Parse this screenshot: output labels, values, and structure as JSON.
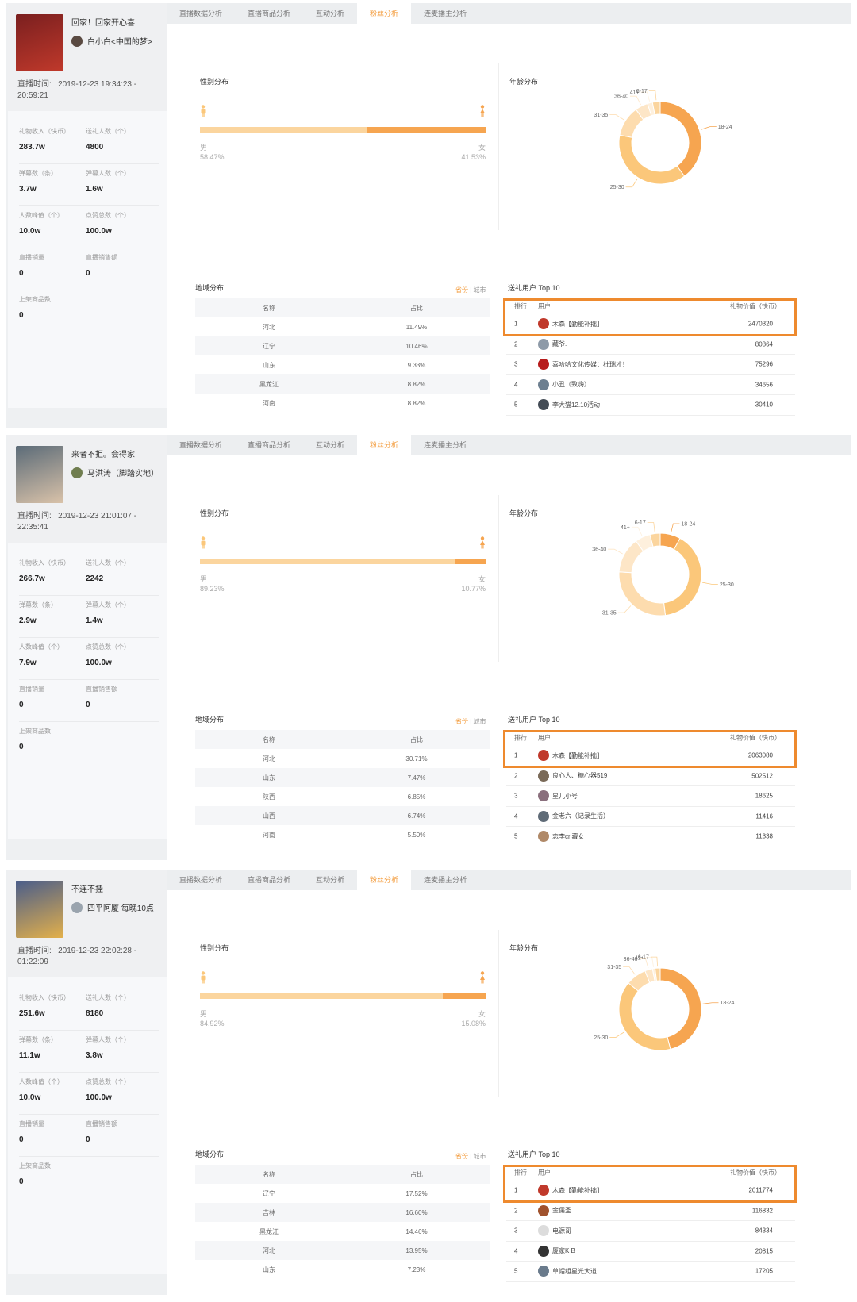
{
  "tabs": [
    "直播数据分析",
    "直播商品分析",
    "互动分析",
    "粉丝分析",
    "连麦播主分析"
  ],
  "active_tab": 3,
  "labels": {
    "live_time_prefix": "直播时间:",
    "gift_income": "礼物收入（快币）",
    "gift_people": "送礼人数（个）",
    "danmu_count": "弹幕数（条）",
    "danmu_people": "弹幕人数（个）",
    "peak_viewers": "人数峰值（个）",
    "likes": "点赞总数（个）",
    "live_sales": "直播销量",
    "live_sales_amount": "直播销售额",
    "products_listed": "上架商品数",
    "gender_title": "性别分布",
    "age_title": "年龄分布",
    "region_title": "地域分布",
    "region_province": "省份",
    "region_sep": " | ",
    "region_city": "城市",
    "region_col_name": "名称",
    "region_col_share": "占比",
    "gift_top_title": "送礼用户 Top 10",
    "gift_col_rank": "排行",
    "gift_col_user": "用户",
    "gift_col_value": "礼物价值（快币）",
    "male": "男",
    "female": "女"
  },
  "colors": {
    "accent": "#f39b3b",
    "highlight": "#ee8a2e",
    "bar_male": "#fbd59e",
    "bar_female": "#f6a550"
  },
  "panels": [
    {
      "title": "回家！回家开心喜",
      "anchor": "白小白<中国的梦>",
      "live_time": "2019-12-23 19:34:23 - 20:59:21",
      "stats": {
        "gift_income": "283.7w",
        "gift_people": "4800",
        "danmu_count": "3.7w",
        "danmu_people": "1.6w",
        "peak_viewers": "10.0w",
        "likes": "100.0w",
        "live_sales": "0",
        "live_sales_amount": "0",
        "products_listed": "0"
      },
      "gender": {
        "male": "58.47%",
        "female": "41.53%",
        "female_share": 0.4153
      },
      "age_segments": [
        {
          "label": "18-24",
          "value": 40
        },
        {
          "label": "25-30",
          "value": 38
        },
        {
          "label": "31-35",
          "value": 12
        },
        {
          "label": "36-40",
          "value": 5
        },
        {
          "label": "41+",
          "value": 2
        },
        {
          "label": "6-17",
          "value": 3
        }
      ],
      "regions": [
        {
          "name": "河北",
          "share": "11.49%"
        },
        {
          "name": "辽宁",
          "share": "10.46%"
        },
        {
          "name": "山东",
          "share": "9.33%"
        },
        {
          "name": "黑龙江",
          "share": "8.82%"
        },
        {
          "name": "河南",
          "share": "8.82%"
        }
      ],
      "gifts": [
        {
          "rank": "1",
          "user": "木森【勤能补拙】",
          "value": "2470320",
          "avatar": "#c0392b"
        },
        {
          "rank": "2",
          "user": "藏爷.",
          "value": "80864",
          "avatar": "#8e9aa8"
        },
        {
          "rank": "3",
          "user": "喜哈哈文化传媒：杜瑞才！",
          "value": "75296",
          "avatar": "#b71c1c"
        },
        {
          "rank": "4",
          "user": "小丑（致嗨）",
          "value": "34656",
          "avatar": "#6d7f90"
        },
        {
          "rank": "5",
          "user": "李大猫12.10活动",
          "value": "30410",
          "avatar": "#444c56"
        }
      ]
    },
    {
      "title": "来者不拒。会得家",
      "anchor": "马洪涛（脚踏实地）",
      "live_time": "2019-12-23 21:01:07 - 22:35:41",
      "stats": {
        "gift_income": "266.7w",
        "gift_people": "2242",
        "danmu_count": "2.9w",
        "danmu_people": "1.4w",
        "peak_viewers": "7.9w",
        "likes": "100.0w",
        "live_sales": "0",
        "live_sales_amount": "0",
        "products_listed": "0"
      },
      "gender": {
        "male": "89.23%",
        "female": "10.77%",
        "female_share": 0.1077
      },
      "age_segments": [
        {
          "label": "18-24",
          "value": 8
        },
        {
          "label": "25-30",
          "value": 40
        },
        {
          "label": "31-35",
          "value": 28
        },
        {
          "label": "36-40",
          "value": 14
        },
        {
          "label": "41+",
          "value": 6
        },
        {
          "label": "6-17",
          "value": 4
        }
      ],
      "regions": [
        {
          "name": "河北",
          "share": "30.71%"
        },
        {
          "name": "山东",
          "share": "7.47%"
        },
        {
          "name": "陕西",
          "share": "6.85%"
        },
        {
          "name": "山西",
          "share": "6.74%"
        },
        {
          "name": "河南",
          "share": "5.50%"
        }
      ],
      "gifts": [
        {
          "rank": "1",
          "user": "木森【勤能补拙】",
          "value": "2063080",
          "avatar": "#c0392b"
        },
        {
          "rank": "2",
          "user": "良心人、糖心器519",
          "value": "502512",
          "avatar": "#7a6a58"
        },
        {
          "rank": "3",
          "user": "星儿小号",
          "value": "18625",
          "avatar": "#8a6f7d"
        },
        {
          "rank": "4",
          "user": "金老六（记录生活）",
          "value": "11416",
          "avatar": "#5f6b77"
        },
        {
          "rank": "5",
          "user": "恋李cn藏女",
          "value": "11338",
          "avatar": "#b08968"
        }
      ]
    },
    {
      "title": "不连不挂",
      "anchor": "四平阿厦 每晚10点",
      "live_time": "2019-12-23 22:02:28 - 01:22:09",
      "stats": {
        "gift_income": "251.6w",
        "gift_people": "8180",
        "danmu_count": "11.1w",
        "danmu_people": "3.8w",
        "peak_viewers": "10.0w",
        "likes": "100.0w",
        "live_sales": "0",
        "live_sales_amount": "0",
        "products_listed": "0"
      },
      "gender": {
        "male": "84.92%",
        "female": "15.08%",
        "female_share": 0.1508
      },
      "age_segments": [
        {
          "label": "18-24",
          "value": 46
        },
        {
          "label": "25-30",
          "value": 40
        },
        {
          "label": "31-35",
          "value": 8
        },
        {
          "label": "36-40",
          "value": 3
        },
        {
          "label": "41+",
          "value": 1
        },
        {
          "label": "6-17",
          "value": 2
        }
      ],
      "regions": [
        {
          "name": "辽宁",
          "share": "17.52%"
        },
        {
          "name": "吉林",
          "share": "16.60%"
        },
        {
          "name": "黑龙江",
          "share": "14.46%"
        },
        {
          "name": "河北",
          "share": "13.95%"
        },
        {
          "name": "山东",
          "share": "7.23%"
        }
      ],
      "gifts": [
        {
          "rank": "1",
          "user": "木森【勤能补拙】",
          "value": "2011774",
          "avatar": "#c0392b"
        },
        {
          "rank": "2",
          "user": "金儒圣",
          "value": "116832",
          "avatar": "#a0522d"
        },
        {
          "rank": "3",
          "user": "电源哥",
          "value": "84334",
          "avatar": "#dcdcdc"
        },
        {
          "rank": "4",
          "user": "厦家K B",
          "value": "20815",
          "avatar": "#333333"
        },
        {
          "rank": "5",
          "user": "草帽组星光大道",
          "value": "17205",
          "avatar": "#6a7b8c"
        }
      ]
    }
  ]
}
